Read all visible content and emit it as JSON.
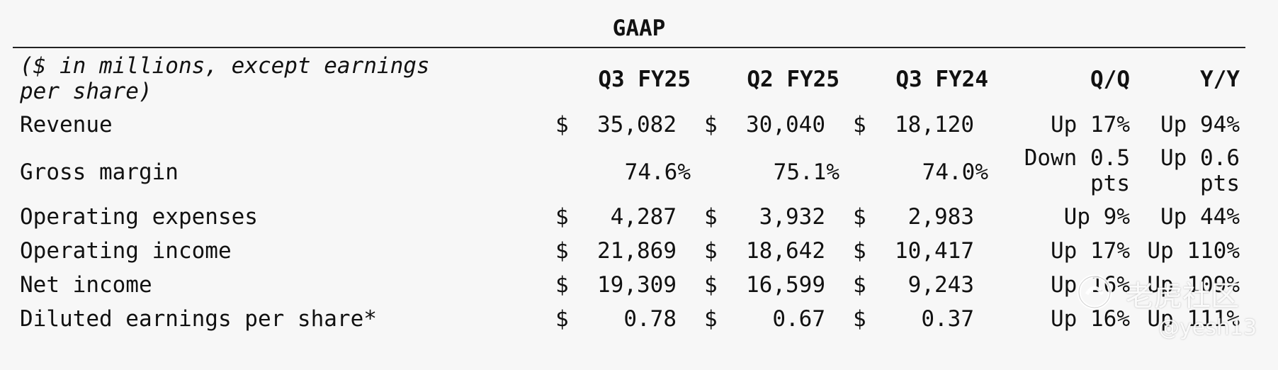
{
  "title": "GAAP",
  "subheading": "($ in millions, except earnings per share)",
  "columns": [
    "Q3 FY25",
    "Q2 FY25",
    "Q3 FY24",
    "Q/Q",
    "Y/Y"
  ],
  "currency_symbol": "$",
  "rows": [
    {
      "label": "Revenue",
      "dollar": true,
      "q3fy25": "35,082",
      "q2fy25": "30,040",
      "q3fy24": "18,120",
      "qq": "Up 17%",
      "yy": "Up 94%"
    },
    {
      "label": "Gross margin",
      "dollar": false,
      "q3fy25": "74.6%",
      "q2fy25": "75.1%",
      "q3fy24": "74.0%",
      "qq": "Down 0.5 pts",
      "yy": "Up 0.6 pts"
    },
    {
      "label": "Operating expenses",
      "dollar": true,
      "q3fy25": "4,287",
      "q2fy25": "3,932",
      "q3fy24": "2,983",
      "qq": "Up 9%",
      "yy": "Up 44%"
    },
    {
      "label": "Operating income",
      "dollar": true,
      "q3fy25": "21,869",
      "q2fy25": "18,642",
      "q3fy24": "10,417",
      "qq": "Up 17%",
      "yy": "Up 110%"
    },
    {
      "label": "Net income",
      "dollar": true,
      "q3fy25": "19,309",
      "q2fy25": "16,599",
      "q3fy24": "9,243",
      "qq": "Up 16%",
      "yy": "Up 109%"
    },
    {
      "label": "Diluted earnings per share*",
      "dollar": true,
      "q3fy25": "0.78",
      "q2fy25": "0.67",
      "q3fy24": "0.37",
      "qq": "Up 16%",
      "yy": "Up 111%"
    }
  ],
  "watermark": {
    "brand": "老虎社区",
    "handle": "@yesh13"
  }
}
